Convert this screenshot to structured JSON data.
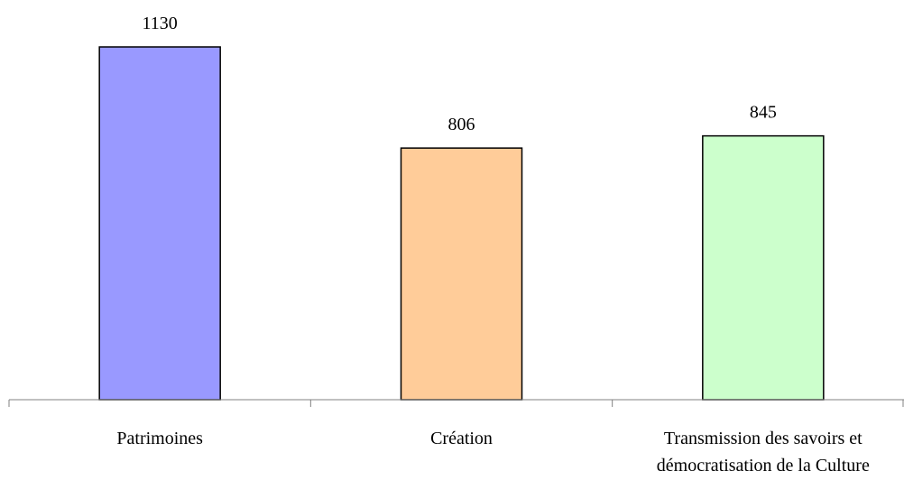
{
  "chart_data": {
    "type": "bar",
    "categories": [
      [
        "Patrimoines"
      ],
      [
        "Création"
      ],
      [
        "Transmission des savoirs et",
        "démocratisation de la Culture"
      ]
    ],
    "values": [
      1130,
      806,
      845
    ],
    "data_labels": [
      "1130",
      "806",
      "845"
    ],
    "colors": [
      "#9999ff",
      "#ffcc99",
      "#ccffcc"
    ],
    "ylim": [
      0,
      1130
    ],
    "grid": false,
    "legend": "none",
    "axis_color": "#808080",
    "bar_border_color": "#000000"
  }
}
